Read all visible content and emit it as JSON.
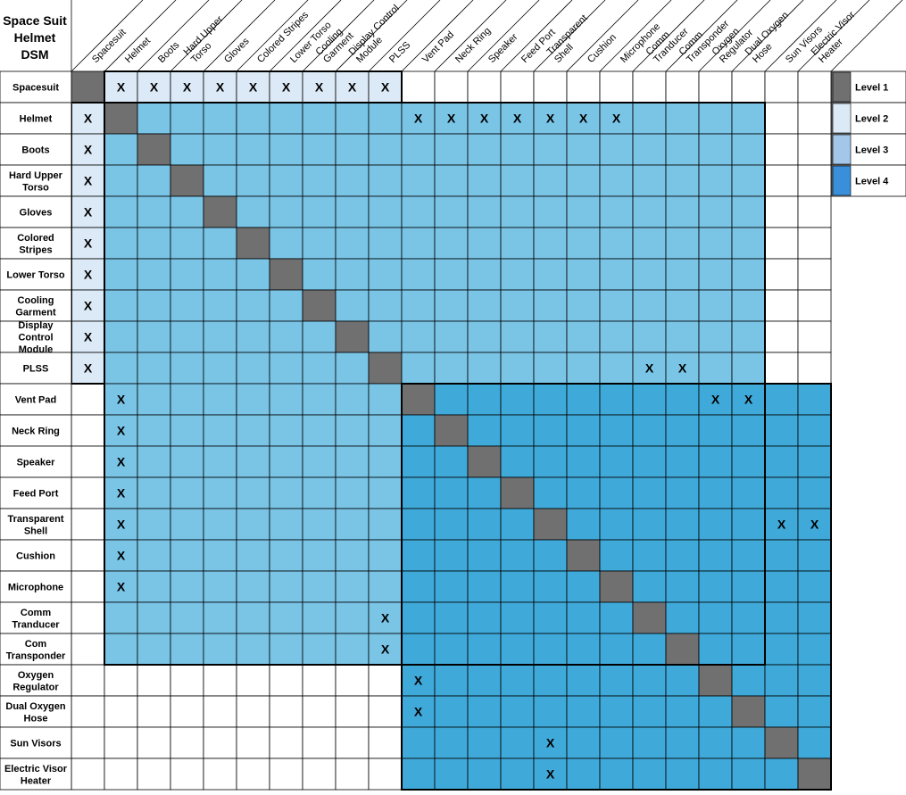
{
  "title_lines": [
    "Space Suit",
    "Helmet",
    "DSM"
  ],
  "components": [
    "Spacesuit",
    "Helmet",
    "Boots",
    "Hard Upper Torso",
    "Gloves",
    "Colored Stripes",
    "Lower Torso",
    "Cooling Garment",
    "Display Control Module",
    "PLSS",
    "Vent Pad",
    "Neck Ring",
    "Speaker",
    "Feed Port",
    "Transparent Shell",
    "Cushion",
    "Microphone",
    "Comm Tranducer",
    "Com Transponder",
    "Oxygen Regulator",
    "Dual Oxygen Hose",
    "Sun Visors",
    "Electric Visor Heater"
  ],
  "column_headers": [
    [
      "Spacesuit"
    ],
    [
      "Helmet"
    ],
    [
      "Boots"
    ],
    [
      "Hard Upper",
      "Torso"
    ],
    [
      "Gloves"
    ],
    [
      "Colored Stripes"
    ],
    [
      "Lower Torso"
    ],
    [
      "Cooling",
      "Garment"
    ],
    [
      "Display Control",
      "Module"
    ],
    [
      "PLSS"
    ],
    [
      "Vent Pad"
    ],
    [
      "Neck Ring"
    ],
    [
      "Speaker"
    ],
    [
      "Feed Port"
    ],
    [
      "Transparent",
      "Shell"
    ],
    [
      "Cushion"
    ],
    [
      "Microphone"
    ],
    [
      "Comm",
      "Tranducer"
    ],
    [
      "Comm",
      "Transponder"
    ],
    [
      "Oxygen",
      "Regulator"
    ],
    [
      "Dual Oxygen",
      "Hose"
    ],
    [
      "Sun Visors"
    ],
    [
      "Electric Visor",
      "Heater"
    ]
  ],
  "row_headers": [
    [
      "Spacesuit"
    ],
    [
      "Helmet"
    ],
    [
      "Boots"
    ],
    [
      "Hard Upper",
      "Torso"
    ],
    [
      "Gloves"
    ],
    [
      "Colored",
      "Stripes"
    ],
    [
      "Lower Torso"
    ],
    [
      "Cooling",
      "Garment"
    ],
    [
      "Display",
      "Control",
      "Module"
    ],
    [
      "PLSS"
    ],
    [
      "Vent Pad"
    ],
    [
      "Neck Ring"
    ],
    [
      "Speaker"
    ],
    [
      "Feed Port"
    ],
    [
      "Transparent",
      "Shell"
    ],
    [
      "Cushion"
    ],
    [
      "Microphone"
    ],
    [
      "Comm",
      "Tranducer"
    ],
    [
      "Com",
      "Transponder"
    ],
    [
      "Oxygen",
      "Regulator"
    ],
    [
      "Dual Oxygen",
      "Hose"
    ],
    [
      "Sun Visors"
    ],
    [
      "Electric Visor",
      "Heater"
    ]
  ],
  "mark_symbol": "X",
  "dependencies": [
    [
      0,
      1
    ],
    [
      0,
      2
    ],
    [
      0,
      3
    ],
    [
      0,
      4
    ],
    [
      0,
      5
    ],
    [
      0,
      6
    ],
    [
      0,
      7
    ],
    [
      0,
      8
    ],
    [
      0,
      9
    ],
    [
      1,
      0
    ],
    [
      2,
      0
    ],
    [
      3,
      0
    ],
    [
      4,
      0
    ],
    [
      5,
      0
    ],
    [
      6,
      0
    ],
    [
      7,
      0
    ],
    [
      8,
      0
    ],
    [
      9,
      0
    ],
    [
      1,
      10
    ],
    [
      1,
      11
    ],
    [
      1,
      12
    ],
    [
      1,
      13
    ],
    [
      1,
      14
    ],
    [
      1,
      15
    ],
    [
      1,
      16
    ],
    [
      10,
      1
    ],
    [
      11,
      1
    ],
    [
      12,
      1
    ],
    [
      13,
      1
    ],
    [
      14,
      1
    ],
    [
      15,
      1
    ],
    [
      16,
      1
    ],
    [
      9,
      17
    ],
    [
      9,
      18
    ],
    [
      17,
      9
    ],
    [
      18,
      9
    ],
    [
      10,
      19
    ],
    [
      10,
      20
    ],
    [
      19,
      10
    ],
    [
      20,
      10
    ],
    [
      14,
      21
    ],
    [
      14,
      22
    ],
    [
      21,
      14
    ],
    [
      22,
      14
    ]
  ],
  "level_blocks": [
    {
      "level": 2,
      "rows": [
        0,
        0
      ],
      "cols": [
        1,
        9
      ]
    },
    {
      "level": 2,
      "rows": [
        1,
        9
      ],
      "cols": [
        0,
        0
      ]
    },
    {
      "level": 3,
      "rows": [
        1,
        18
      ],
      "cols": [
        1,
        20
      ]
    },
    {
      "level": 4,
      "rows": [
        10,
        22
      ],
      "cols": [
        10,
        22
      ]
    }
  ],
  "colors": {
    "level1": "#707070",
    "level2": "#dceaf7",
    "level3": "#7ac4e6",
    "level4": "#3fa9d9",
    "empty": "#ffffff",
    "grid": "#000000",
    "legend_level2": "#dceaf7",
    "legend_level3": "#a4c6e8",
    "legend_level4": "#3a8fda"
  },
  "legend": [
    {
      "label": "Level 1",
      "color_key": "level1"
    },
    {
      "label": "Level 2",
      "color_key": "legend_level2"
    },
    {
      "label": "Level 3",
      "color_key": "legend_level3"
    },
    {
      "label": "Level 4",
      "color_key": "legend_level4"
    }
  ]
}
